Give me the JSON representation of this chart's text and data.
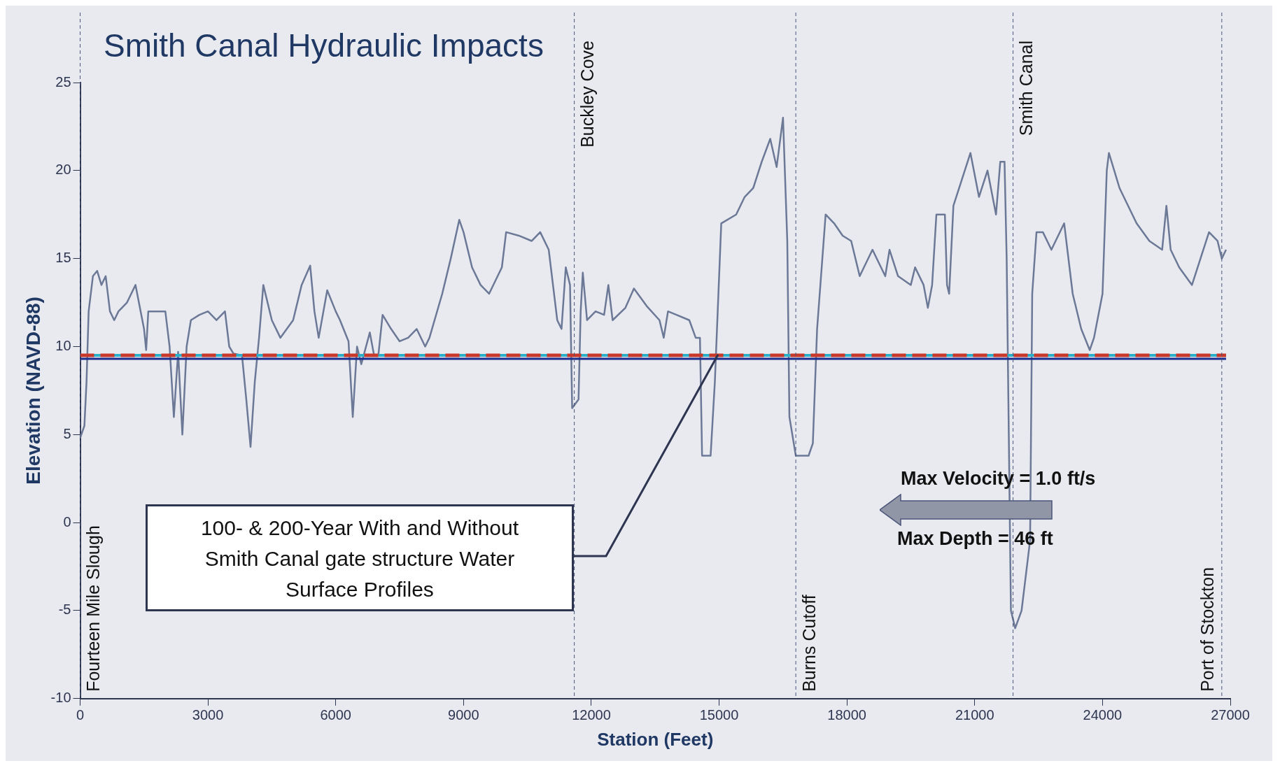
{
  "chart_data": {
    "type": "line",
    "title": "Smith Canal Hydraulic Impacts",
    "xlabel": "Station (Feet)",
    "ylabel": "Elevation (NAVD-88)",
    "xlim": [
      0,
      27000
    ],
    "xticks": [
      0,
      3000,
      6000,
      9000,
      12000,
      15000,
      18000,
      21000,
      24000,
      27000
    ],
    "ylim": [
      -10,
      25
    ],
    "yticks": [
      -10,
      -5,
      0,
      5,
      10,
      15,
      20,
      25
    ],
    "grid": false,
    "legend": false,
    "marker": "none",
    "series": [
      {
        "color": "#6b7896",
        "x": [
          0,
          100,
          150,
          200,
          300,
          400,
          500,
          600,
          700,
          800,
          900,
          1100,
          1300,
          1500,
          1550,
          1600,
          1800,
          2000,
          2100,
          2200,
          2300,
          2400,
          2500,
          2600,
          2800,
          3000,
          3200,
          3400,
          3500,
          3600,
          3800,
          3900,
          4000,
          4100,
          4200,
          4300,
          4500,
          4700,
          5000,
          5200,
          5400,
          5500,
          5600,
          5800,
          6000,
          6100,
          6300,
          6400,
          6500,
          6600,
          6800,
          6900,
          7000,
          7100,
          7300,
          7500,
          7700,
          7900,
          8100,
          8200,
          8500,
          8700,
          8900,
          9000,
          9200,
          9400,
          9600,
          9900,
          10000,
          10300,
          10600,
          10800,
          11000,
          11200,
          11300,
          11400,
          11500,
          11550,
          11700,
          11750,
          11800,
          11900,
          12100,
          12300,
          12400,
          12500,
          12800,
          13000,
          13300,
          13600,
          13700,
          13800,
          14000,
          14300,
          14450,
          14550,
          14600,
          14800,
          14900,
          15050,
          15400,
          15600,
          15800,
          16000,
          16200,
          16350,
          16500,
          16600,
          16650,
          16800,
          17100,
          17200,
          17300,
          17500,
          17700,
          17900,
          18100,
          18300,
          18600,
          18900,
          19000,
          19200,
          19500,
          19600,
          19800,
          19900,
          20000,
          20100,
          20300,
          20350,
          20400,
          20500,
          20700,
          20900,
          21100,
          21300,
          21500,
          21600,
          21700,
          21750,
          21800,
          21850,
          21950,
          22100,
          22300,
          22350,
          22450,
          22600,
          22800,
          23100,
          23300,
          23500,
          23700,
          23800,
          24000,
          24100,
          24150,
          24400,
          24800,
          25100,
          25400,
          25500,
          25600,
          25800,
          26100,
          26300,
          26500,
          26700,
          26800,
          26900
        ],
        "values": [
          4.8,
          5.5,
          8,
          12,
          14,
          14.3,
          13.5,
          14,
          12,
          11.5,
          12,
          12.5,
          13.5,
          11,
          9.8,
          12,
          12,
          12,
          10,
          6,
          9.7,
          5,
          10,
          11.5,
          11.8,
          12,
          11.5,
          12,
          10,
          9.6,
          9.5,
          7,
          4.3,
          8,
          10.5,
          13.5,
          11.5,
          10.5,
          11.5,
          13.5,
          14.6,
          12,
          10.5,
          13.2,
          12,
          11.5,
          10.3,
          6,
          10,
          9,
          10.8,
          9.5,
          9.5,
          11.8,
          11,
          10.3,
          10.5,
          11,
          10,
          10.5,
          13,
          15,
          17.2,
          16.5,
          14.5,
          13.5,
          13,
          14.5,
          16.5,
          16.3,
          16,
          16.5,
          15.5,
          11.5,
          11,
          14.5,
          13.5,
          6.5,
          7,
          12,
          14.2,
          11.5,
          12,
          11.8,
          13.5,
          11.5,
          12.2,
          13.3,
          12.3,
          11.5,
          10.5,
          12,
          11.8,
          11.5,
          10.5,
          10.5,
          3.8,
          3.8,
          8,
          17,
          17.5,
          18.5,
          19,
          20.5,
          21.8,
          20.2,
          23,
          16,
          6,
          3.8,
          3.8,
          4.5,
          11,
          17.5,
          17,
          16.3,
          16,
          14,
          15.5,
          14,
          15.5,
          14,
          13.5,
          14.5,
          13.5,
          12.2,
          13.5,
          17.5,
          17.5,
          13.5,
          13,
          18,
          19.5,
          21,
          18.5,
          20,
          17.5,
          20.5,
          20.5,
          15,
          5,
          -5,
          -6,
          -5,
          -1,
          13,
          16.5,
          16.5,
          15.5,
          17,
          13,
          11,
          9.8,
          10.5,
          13,
          20,
          21,
          19,
          17,
          16,
          15.5,
          18,
          15.5,
          14.5,
          13.5,
          15,
          16.5,
          16,
          15,
          15.5
        ]
      },
      {
        "color": "#1a2d8c",
        "x": [
          0,
          26900
        ],
        "values": [
          9.3,
          9.3
        ]
      },
      {
        "color": "#2ab0c8",
        "x": [
          0,
          26900
        ],
        "values": [
          9.5,
          9.5
        ]
      },
      {
        "color": "#c8392b",
        "line_style": "dashed",
        "x": [
          0,
          26900
        ],
        "values": [
          9.5,
          9.5
        ]
      }
    ],
    "ref_lines": [
      {
        "axis": "x",
        "value": 0,
        "label": "Fourteen Mile Slough",
        "line_style": "dashed"
      },
      {
        "axis": "x",
        "value": 11600,
        "label": "Buckley Cove",
        "line_style": "dashed"
      },
      {
        "axis": "x",
        "value": 16800,
        "label": "Burns Cutoff",
        "line_style": "dashed"
      },
      {
        "axis": "x",
        "value": 21900,
        "label": "Smith Canal",
        "line_style": "dashed"
      },
      {
        "axis": "x",
        "value": 26800,
        "label": "Port of Stockton",
        "line_style": "dashed"
      }
    ],
    "annotations": [
      "100- & 200-Year With and Without Smith Canal gate structure Water Surface Profiles",
      "Max Velocity = 1.0 ft/s",
      "Max Depth = 46 ft"
    ]
  }
}
